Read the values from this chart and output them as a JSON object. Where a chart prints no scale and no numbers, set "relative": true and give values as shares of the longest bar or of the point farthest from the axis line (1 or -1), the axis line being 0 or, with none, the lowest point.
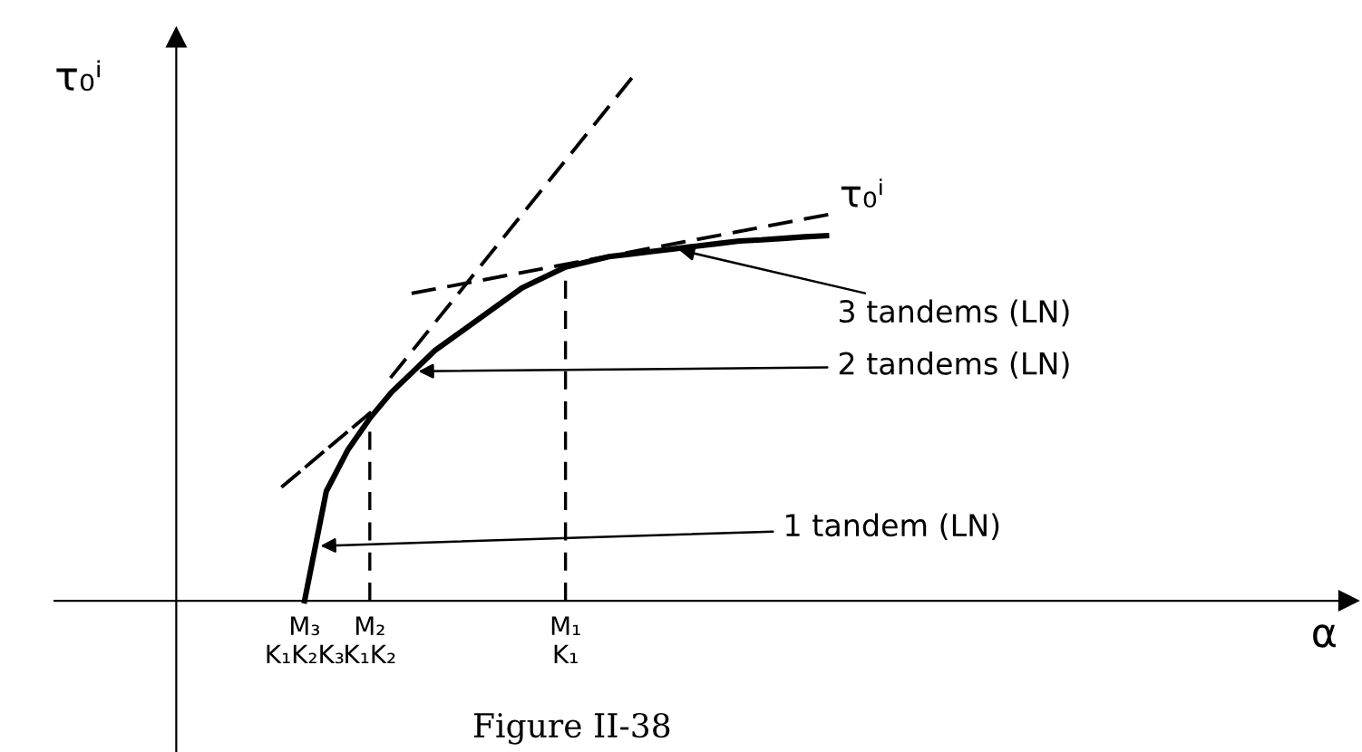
{
  "chart_data": {
    "type": "line",
    "relative": true,
    "ylabel": "τ₀ⁱ",
    "categories": [
      null,
      "M₃\nK₁K₂K₃",
      null,
      null,
      "M₂\nK₁K₂",
      null,
      null,
      null,
      null,
      null,
      null,
      null,
      null,
      "M₁\nK₁",
      null,
      null,
      null,
      null,
      null,
      null,
      null,
      null,
      null,
      null,
      null,
      null
    ],
    "tick_labels": "x",
    "series": [
      {
        "name": "τ₀ⁱ",
        "color": "#000000",
        "line_style": "solid",
        "values": [
          null,
          0,
          0.21,
          0.29,
          0.35,
          0.4,
          0.44,
          0.48,
          0.51,
          0.54,
          0.57,
          0.6,
          0.62,
          0.64,
          0.65,
          0.66,
          0.665,
          0.67,
          0.675,
          0.68,
          0.685,
          0.69,
          0.692,
          0.695,
          0.698,
          0.7
        ]
      },
      {
        "color": "#000000",
        "line_style": "dashed",
        "values": [
          0.22,
          null,
          null,
          null,
          0.36,
          null,
          null,
          null,
          null,
          null,
          null,
          null,
          null,
          null,
          null,
          null,
          null,
          null,
          null,
          null,
          null,
          null,
          null,
          null,
          null,
          null
        ]
      },
      {
        "color": "#000000",
        "line_style": "dashed",
        "values": [
          null,
          null,
          null,
          null,
          null,
          0.43,
          null,
          null,
          null,
          null,
          null,
          null,
          null,
          null,
          null,
          null,
          1,
          null,
          null,
          null,
          null,
          null,
          null,
          null,
          null,
          null
        ]
      },
      {
        "color": "#000000",
        "line_style": "dashed",
        "values": [
          null,
          null,
          null,
          null,
          null,
          null,
          0.59,
          null,
          null,
          null,
          null,
          null,
          null,
          null,
          null,
          null,
          null,
          null,
          null,
          null,
          null,
          null,
          null,
          null,
          null,
          0.74
        ]
      }
    ],
    "ref_lines": [
      {
        "axis": "x",
        "value": "M₂\nK₁K₂",
        "line_style": "dashed"
      },
      {
        "axis": "x",
        "value": "M₁\nK₁",
        "line_style": "dashed"
      }
    ],
    "annotations": [
      "3 tandems (LN)",
      "2 tandems (LN)",
      "1 tandem (LN)",
      "α",
      "Figure II-38"
    ]
  }
}
